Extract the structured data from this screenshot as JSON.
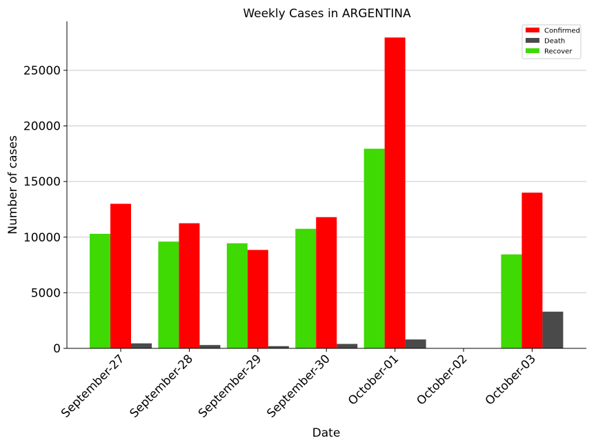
{
  "chart_data": {
    "type": "bar",
    "title": "Weekly Cases in ARGENTINA",
    "xlabel": "Date",
    "ylabel": "Number of cases",
    "categories": [
      "September-27",
      "September-28",
      "September-29",
      "September-30",
      "October-01",
      "October-02",
      "October-03"
    ],
    "series": [
      {
        "name": "Recover",
        "color": "#3fd904",
        "values": [
          10300,
          9600,
          9450,
          10750,
          17950,
          0,
          8450
        ]
      },
      {
        "name": "Confirmed",
        "color": "#ff0000",
        "values": [
          13000,
          11250,
          8850,
          11800,
          27950,
          0,
          14000
        ]
      },
      {
        "name": "Death",
        "color": "#4a4a4a",
        "values": [
          450,
          300,
          200,
          400,
          800,
          0,
          3300
        ]
      }
    ],
    "legend_order": [
      "Confirmed",
      "Death",
      "Recover"
    ],
    "yticks": [
      0,
      5000,
      10000,
      15000,
      20000,
      25000
    ],
    "ylim": [
      0,
      29400
    ],
    "grid": "horizontal",
    "legend_position": "top-right"
  }
}
